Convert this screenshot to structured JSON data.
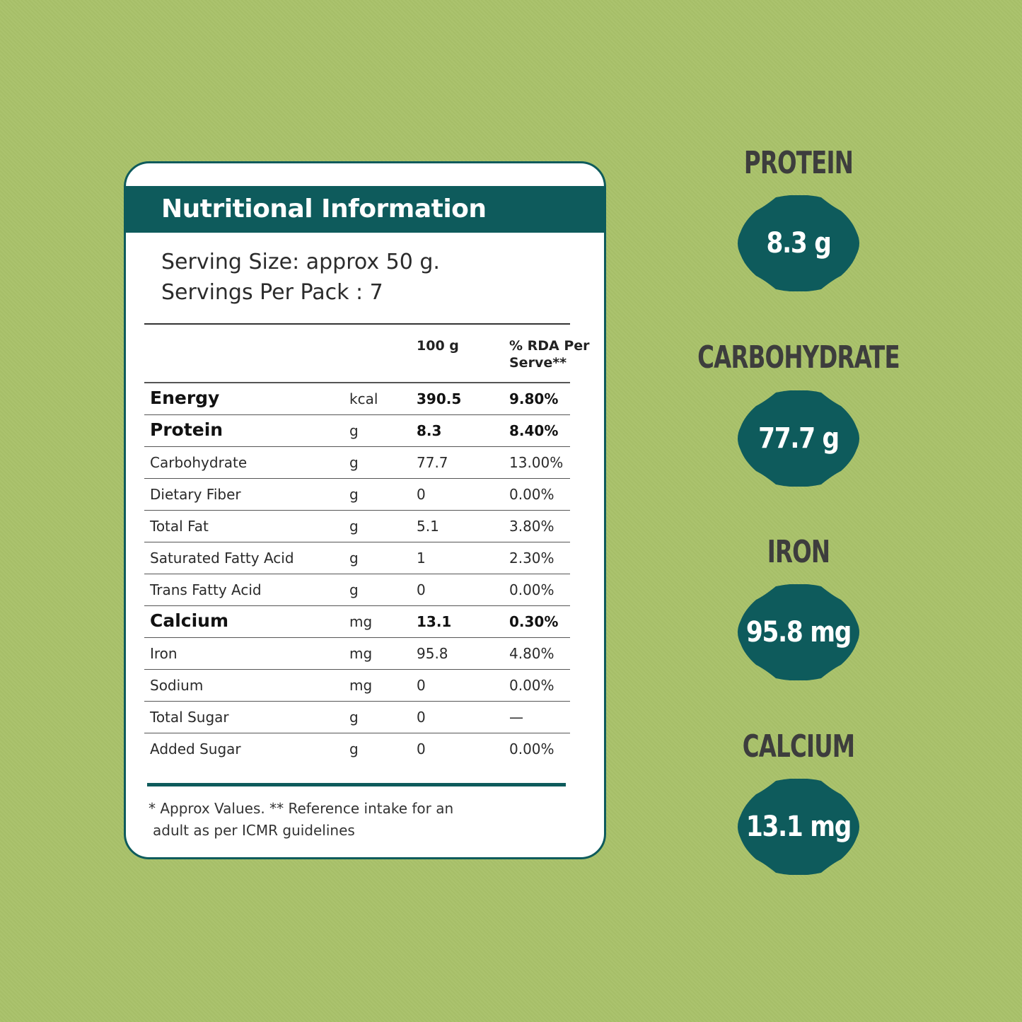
{
  "panel": {
    "title": "Nutritional Information",
    "serving_size": "Serving Size: approx 50 g.",
    "servings_per_pack": "Servings Per Pack : 7",
    "col_100g": "100 g",
    "col_rda_line1": "% RDA Per",
    "col_rda_line2": "Serve**",
    "rows": [
      {
        "name": "Energy",
        "unit": "kcal",
        "value": "390.5",
        "rda": "9.80%",
        "bold": true
      },
      {
        "name": "Protein",
        "unit": "g",
        "value": "8.3",
        "rda": "8.40%",
        "bold": true
      },
      {
        "name": "Carbohydrate",
        "unit": "g",
        "value": "77.7",
        "rda": "13.00%",
        "bold": false
      },
      {
        "name": "Dietary Fiber",
        "unit": "g",
        "value": "0",
        "rda": "0.00%",
        "bold": false
      },
      {
        "name": "Total Fat",
        "unit": "g",
        "value": "5.1",
        "rda": "3.80%",
        "bold": false
      },
      {
        "name": "Saturated Fatty Acid",
        "unit": "g",
        "value": "1",
        "rda": "2.30%",
        "bold": false
      },
      {
        "name": "Trans Fatty Acid",
        "unit": "g",
        "value": "0",
        "rda": "0.00%",
        "bold": false
      },
      {
        "name": "Calcium",
        "unit": "mg",
        "value": "13.1",
        "rda": "0.30%",
        "bold": true
      },
      {
        "name": "Iron",
        "unit": "mg",
        "value": "95.8",
        "rda": "4.80%",
        "bold": false
      },
      {
        "name": "Sodium",
        "unit": "mg",
        "value": "0",
        "rda": "0.00%",
        "bold": false
      },
      {
        "name": "Total Sugar",
        "unit": "g",
        "value": "0",
        "rda": "—",
        "bold": false
      },
      {
        "name": "Added Sugar",
        "unit": "g",
        "value": "0",
        "rda": "0.00%",
        "bold": false
      }
    ],
    "footnote_line1": "* Approx Values. ** Reference intake for an",
    "footnote_line2": "adult as per ICMR guidelines"
  },
  "highlights": [
    {
      "label": "PROTEIN",
      "value": "8.3 g"
    },
    {
      "label": "CARBOHYDRATE",
      "value": "77.7 g"
    },
    {
      "label": "IRON",
      "value": "95.8 mg"
    },
    {
      "label": "CALCIUM",
      "value": "13.1 mg"
    }
  ],
  "colors": {
    "background": "#a9c26a",
    "accent": "#0e5b5c",
    "card": "#ffffff",
    "label_text": "#3d3d3d"
  }
}
